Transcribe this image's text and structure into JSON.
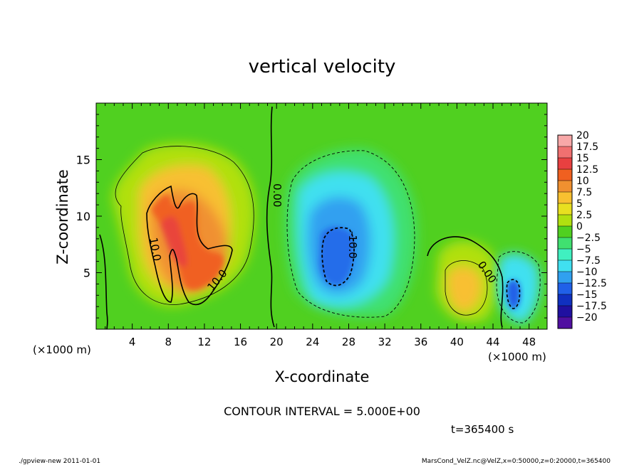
{
  "chart_data": {
    "type": "heatmap",
    "title": "vertical velocity",
    "xlabel": "X-coordinate",
    "ylabel": "Z-coordinate",
    "x_unit": "(×1000 m)",
    "y_unit": "(×1000 m)",
    "xlim": [
      0,
      50
    ],
    "ylim": [
      0,
      20
    ],
    "x_ticks": [
      "4",
      "8",
      "12",
      "16",
      "20",
      "24",
      "28",
      "32",
      "36",
      "40",
      "44",
      "48"
    ],
    "y_ticks": [
      "5",
      "10",
      "15"
    ],
    "contour_labels": [
      "10.0",
      "10.0",
      "0.00",
      "-10.0",
      "0.00"
    ],
    "contour_interval_text": "CONTOUR INTERVAL = 5.000E+00",
    "time_text": "t=365400 s",
    "colorbar": {
      "labels": [
        "20",
        "17.5",
        "15",
        "12.5",
        "10",
        "7.5",
        "5",
        "2.5",
        "0",
        "−2.5",
        "−5",
        "−7.5",
        "−10",
        "−12.5",
        "−15",
        "−17.5",
        "−20"
      ],
      "colors": [
        "#f8a8a8",
        "#f07070",
        "#e84040",
        "#f06020",
        "#f09030",
        "#f8c030",
        "#e8e020",
        "#b0e010",
        "#50d020",
        "#40e070",
        "#40f0c0",
        "#40e0f0",
        "#30a0f0",
        "#2060e8",
        "#1030c0",
        "#2010a0",
        "#5010a0"
      ]
    },
    "features": [
      {
        "name": "updraft",
        "x_center": 10,
        "z_center": 8,
        "peak_value": 15
      },
      {
        "name": "downdraft",
        "x_center": 27,
        "z_center": 7,
        "peak_value": -12.5
      },
      {
        "name": "small-updraft",
        "x_center": 41,
        "z_center": 4,
        "peak_value": 10
      },
      {
        "name": "small-downdraft",
        "x_center": 46,
        "z_center": 3,
        "peak_value": -15
      }
    ]
  },
  "footer": {
    "left": "./gpview-new   2011-01-01",
    "right": "MarsCond_VelZ.nc@VelZ,x=0:50000,z=0:20000,t=365400"
  }
}
